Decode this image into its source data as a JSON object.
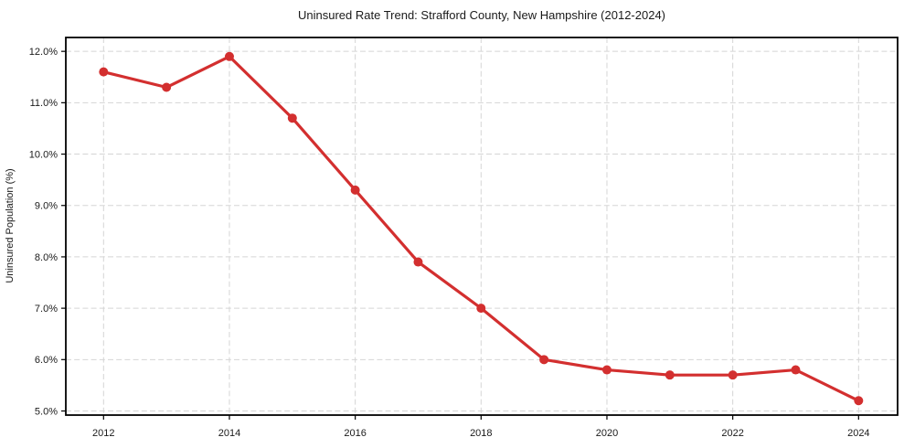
{
  "page": {
    "background": "#ffffff"
  },
  "chart_data": {
    "type": "line",
    "title": "Uninsured Rate Trend: Strafford County, New Hampshire (2012-2024)",
    "xlabel": "",
    "ylabel": "Uninsured Population (%)",
    "x": [
      2012,
      2013,
      2014,
      2015,
      2016,
      2017,
      2018,
      2019,
      2020,
      2021,
      2022,
      2023,
      2024
    ],
    "values": [
      11.6,
      11.3,
      11.9,
      10.7,
      9.3,
      7.9,
      7.0,
      6.0,
      5.8,
      5.7,
      5.7,
      5.8,
      5.2
    ],
    "xlim": [
      2011.4,
      2024.62
    ],
    "ylim": [
      4.92,
      12.27
    ],
    "xticks": [
      2012,
      2014,
      2016,
      2018,
      2020,
      2022,
      2024
    ],
    "xtick_labels": [
      "2012",
      "2014",
      "2016",
      "2018",
      "2020",
      "2022",
      "2024"
    ],
    "yticks": [
      5,
      6,
      7,
      8,
      9,
      10,
      11,
      12
    ],
    "ytick_labels": [
      "5.0%",
      "6.0%",
      "7.0%",
      "8.0%",
      "9.0%",
      "10.0%",
      "11.0%",
      "12.0%"
    ],
    "grid": true,
    "grid_style": "dashed",
    "legend": false,
    "line_color": "#d32f2f",
    "marker": "circle",
    "grid_color": "#d5d5d5",
    "axis_color": "#000000",
    "text_color": "#1a1a1a"
  }
}
